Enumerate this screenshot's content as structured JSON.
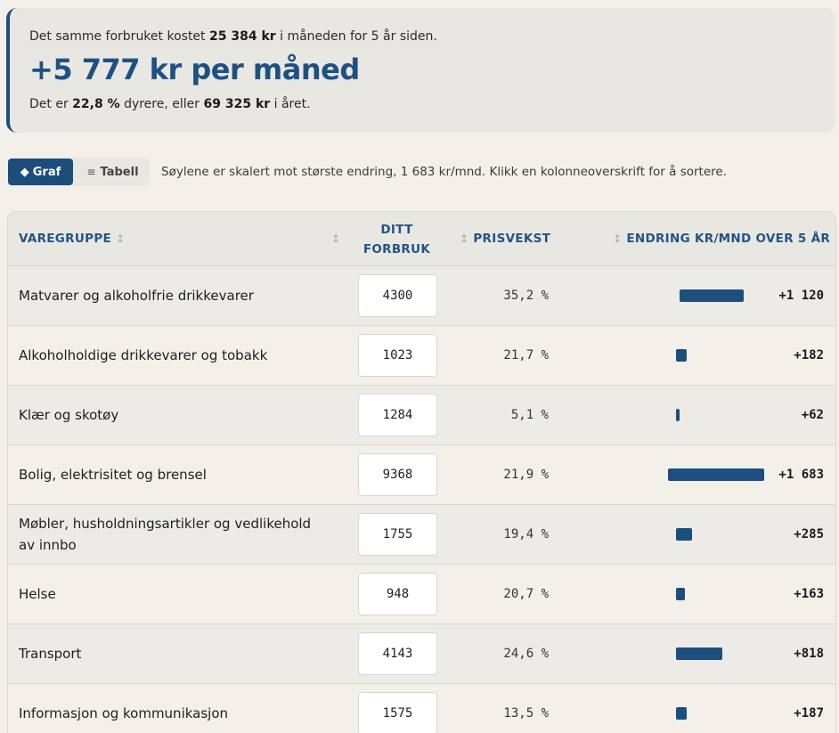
{
  "summary": {
    "line1_pre": "Det samme forbruket kostet",
    "line1_value": "25 384 kr",
    "line1_post": "i måneden for 5 år siden.",
    "headline": "+5 777 kr per måned",
    "line2_pre": "Det er",
    "line2_pct": "22,8 %",
    "line2_mid": "dyrere, eller",
    "line2_year": "69 325 kr",
    "line2_post": "i året."
  },
  "toolbar": {
    "graf_label": "Graf",
    "graf_icon": "◆",
    "tabell_label": "Tabell",
    "tabell_icon": "≡",
    "hint": "Søylene er skalert mot største endring, 1 683 kr/mnd. Klikk en kolonneoverskrift for å sortere."
  },
  "table": {
    "headers": {
      "group": "VAREGRUPPE",
      "forbruk_line1": "DITT",
      "forbruk_line2": "FORBRUK",
      "pris": "PRISVEKST",
      "endring": "ENDRING KR/MND OVER 5 ÅR",
      "sort_icon": "↕"
    },
    "max_change": 1683,
    "rows": [
      {
        "name": "Matvarer og alkoholfrie drikkevarer",
        "forbruk": "4300",
        "pris": "35,2 %",
        "change_label": "+1 120",
        "change": 1120
      },
      {
        "name": "Alkoholholdige drikkevarer og tobakk",
        "forbruk": "1023",
        "pris": "21,7 %",
        "change_label": "+182",
        "change": 182
      },
      {
        "name": "Klær og skotøy",
        "forbruk": "1284",
        "pris": "5,1 %",
        "change_label": "+62",
        "change": 62
      },
      {
        "name": "Bolig, elektrisitet og brensel",
        "forbruk": "9368",
        "pris": "21,9 %",
        "change_label": "+1 683",
        "change": 1683
      },
      {
        "name": "Møbler, husholdningsartikler og vedlikehold av innbo",
        "forbruk": "1755",
        "pris": "19,4 %",
        "change_label": "+285",
        "change": 285
      },
      {
        "name": "Helse",
        "forbruk": "948",
        "pris": "20,7 %",
        "change_label": "+163",
        "change": 163
      },
      {
        "name": "Transport",
        "forbruk": "4143",
        "pris": "24,6 %",
        "change_label": "+818",
        "change": 818
      },
      {
        "name": "Informasjon og kommunikasjon",
        "forbruk": "1575",
        "pris": "13,5 %",
        "change_label": "+187",
        "change": 187
      }
    ]
  }
}
